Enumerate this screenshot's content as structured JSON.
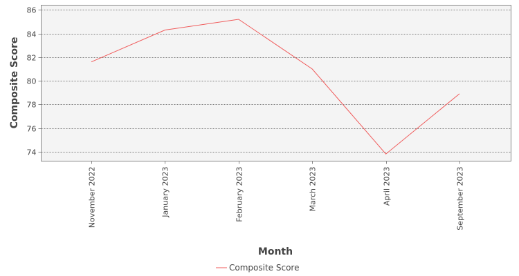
{
  "chart_data": {
    "type": "line",
    "categories": [
      "November 2022",
      "January 2023",
      "February 2023",
      "March 2023",
      "April 2023",
      "September 2023"
    ],
    "series": [
      {
        "name": "Composite Score",
        "values": [
          81.6,
          84.3,
          85.2,
          81.0,
          73.8,
          78.9
        ],
        "color": "#f05a5a"
      }
    ],
    "xlabel": "Month",
    "ylabel": "Composite Score",
    "ylim": [
      73.2,
      86.4
    ],
    "yticks": [
      74,
      76,
      78,
      80,
      82,
      84,
      86
    ],
    "grid": true,
    "legend": "bottom-center",
    "plot_background": "#f4f4f4"
  }
}
